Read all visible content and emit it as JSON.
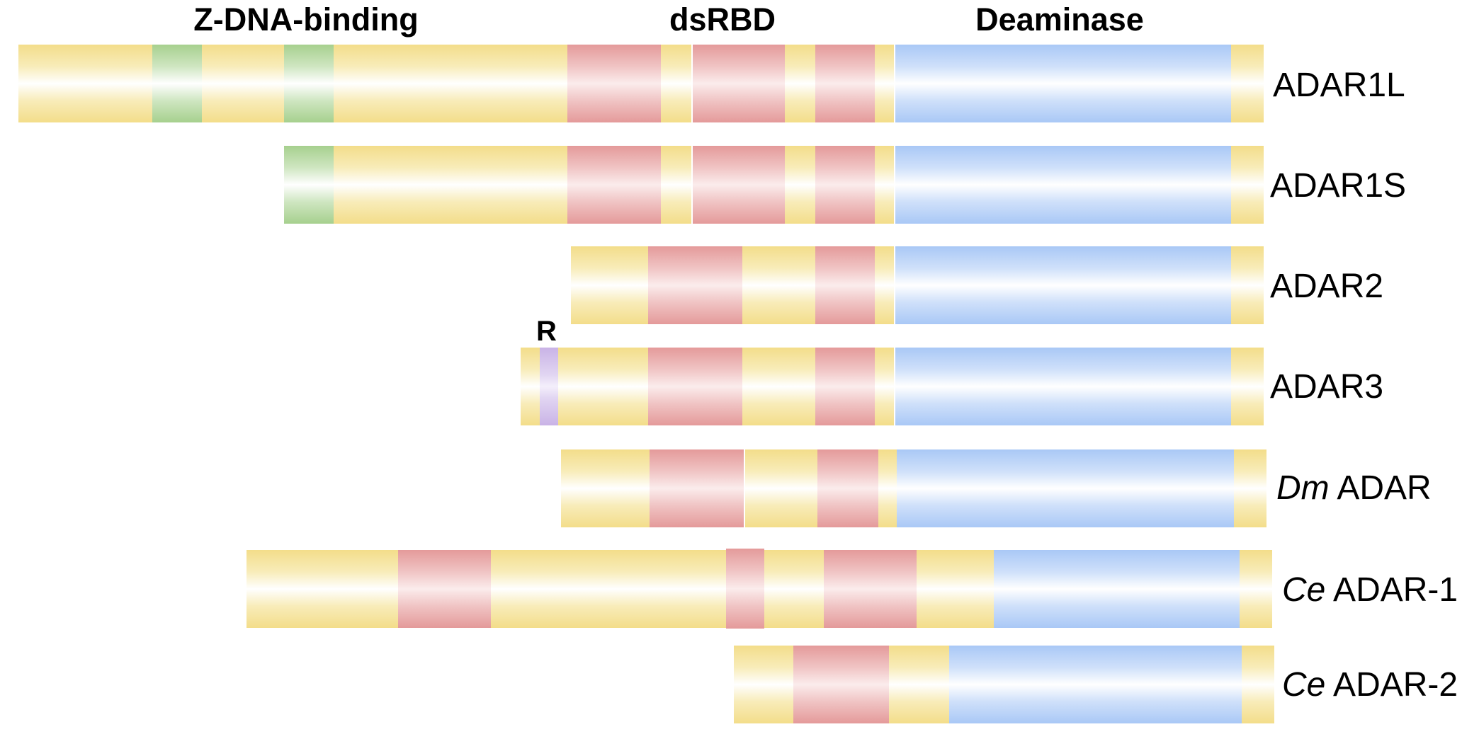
{
  "headers": {
    "zdna": "Z-DNA-binding",
    "dsrbd": "dsRBD",
    "deaminase": "Deaminase"
  },
  "r_motif_label": "R",
  "proteins": [
    {
      "prefix": "",
      "name": "ADAR1L"
    },
    {
      "prefix": "",
      "name": "ADAR1S"
    },
    {
      "prefix": "",
      "name": "ADAR2"
    },
    {
      "prefix": "",
      "name": "ADAR3"
    },
    {
      "prefix": "Dm",
      "name": "ADAR"
    },
    {
      "prefix": "Ce",
      "name": "ADAR-1"
    },
    {
      "prefix": "Ce",
      "name": "ADAR-2"
    }
  ],
  "domain_colors": {
    "backbone": "#f3dd8a",
    "z_dna_binding": "#a6d08e",
    "dsrbd": "#e49a9a",
    "deaminase": "#a9c8f6",
    "r_motif": "#c9b3e6"
  }
}
